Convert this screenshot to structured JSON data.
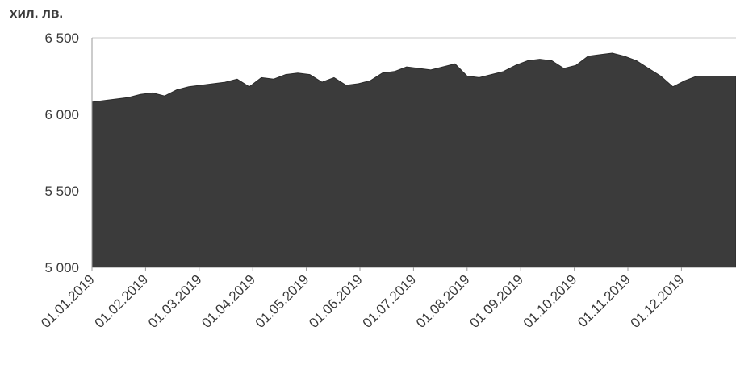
{
  "chart_data": {
    "type": "area",
    "title": "",
    "ylabel": "хил. лв.",
    "xlabel": "",
    "ylim": [
      5000,
      6500
    ],
    "yticks": [
      {
        "value": 5000,
        "label": "5 000"
      },
      {
        "value": 5500,
        "label": "5 500"
      },
      {
        "value": 6000,
        "label": "6 000"
      },
      {
        "value": 6500,
        "label": "6 500"
      }
    ],
    "xticks": [
      "01.01.2019",
      "01.02.2019",
      "01.03.2019",
      "01.04.2019",
      "01.05.2019",
      "01.06.2019",
      "01.07.2019",
      "01.08.2019",
      "01.09.2019",
      "01.10.2019",
      "01.11.2019",
      "01.12.2019"
    ],
    "grid": false,
    "fill_color": "#3b3b3b",
    "series": [
      {
        "x": [
          "2019-01-01",
          "2019-01-08",
          "2019-01-15",
          "2019-01-22",
          "2019-01-29",
          "2019-02-05",
          "2019-02-12",
          "2019-02-19",
          "2019-02-26",
          "2019-03-05",
          "2019-03-12",
          "2019-03-19",
          "2019-03-26",
          "2019-04-02",
          "2019-04-09",
          "2019-04-16",
          "2019-04-23",
          "2019-04-30",
          "2019-05-07",
          "2019-05-14",
          "2019-05-21",
          "2019-05-28",
          "2019-06-04",
          "2019-06-11",
          "2019-06-18",
          "2019-06-25",
          "2019-07-02",
          "2019-07-09",
          "2019-07-16",
          "2019-07-23",
          "2019-07-30",
          "2019-08-06",
          "2019-08-13",
          "2019-08-20",
          "2019-08-27",
          "2019-09-03",
          "2019-09-10",
          "2019-09-17",
          "2019-09-24",
          "2019-10-01",
          "2019-10-08",
          "2019-10-15",
          "2019-10-22",
          "2019-10-29",
          "2019-11-05",
          "2019-11-12",
          "2019-11-19",
          "2019-11-26",
          "2019-12-03",
          "2019-12-10",
          "2019-12-17",
          "2019-12-31"
        ],
        "values": [
          6080,
          6090,
          6100,
          6110,
          6130,
          6140,
          6120,
          6160,
          6180,
          6190,
          6200,
          6210,
          6230,
          6180,
          6240,
          6230,
          6260,
          6270,
          6260,
          6210,
          6240,
          6190,
          6200,
          6220,
          6270,
          6280,
          6310,
          6300,
          6290,
          6310,
          6330,
          6250,
          6240,
          6260,
          6280,
          6320,
          6350,
          6360,
          6350,
          6300,
          6320,
          6380,
          6390,
          6400,
          6380,
          6350,
          6300,
          6250,
          6180,
          6220,
          6250,
          6250
        ]
      }
    ]
  }
}
